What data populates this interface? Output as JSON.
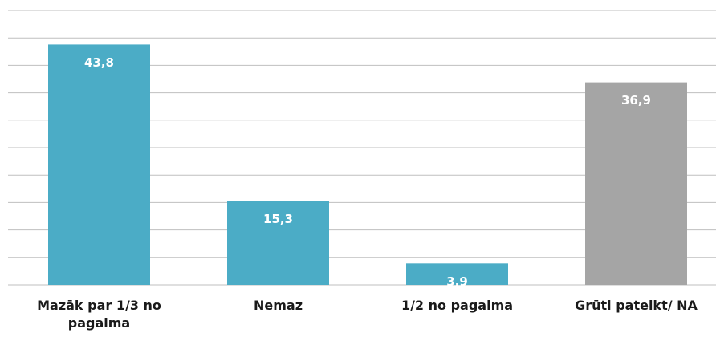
{
  "chart_data": {
    "type": "bar",
    "categories": [
      "Mazāk par 1/3 no pagalma",
      "Nemaz",
      "1/2 no pagalma",
      "Grūti pateikt/ NA"
    ],
    "values": [
      43.8,
      15.3,
      3.9,
      36.9
    ],
    "value_labels": [
      "43,8",
      "15,3",
      "3,9",
      "36,9"
    ],
    "colors": [
      "#4bacc6",
      "#4bacc6",
      "#4bacc6",
      "#a5a5a5"
    ],
    "ylim": [
      0,
      50
    ],
    "yticks": [
      0,
      5,
      10,
      15,
      20,
      25,
      30,
      35,
      40,
      45,
      50
    ],
    "grid": true
  }
}
